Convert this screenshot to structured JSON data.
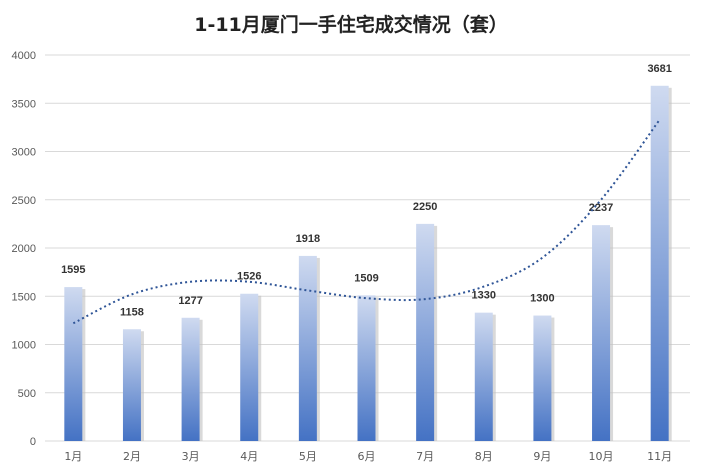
{
  "chart_data": {
    "type": "bar",
    "title": "1-11月厦门一手住宅成交情况（套）",
    "xlabel": "",
    "ylabel": "",
    "categories": [
      "1月",
      "2月",
      "3月",
      "4月",
      "5月",
      "6月",
      "7月",
      "8月",
      "9月",
      "10月",
      "11月"
    ],
    "values": [
      1595,
      1158,
      1277,
      1526,
      1918,
      1509,
      2250,
      1330,
      1300,
      2237,
      3681
    ],
    "ylim": [
      0,
      4000
    ],
    "yticks": [
      0,
      500,
      1000,
      1500,
      2000,
      2500,
      3000,
      3500,
      4000
    ],
    "grid": true,
    "legend": "none",
    "data_labels": true,
    "trendline": {
      "type": "polynomial",
      "style": "dotted",
      "values": [
        1220,
        1520,
        1650,
        1650,
        1560,
        1480,
        1470,
        1600,
        1900,
        2500,
        3330
      ]
    },
    "colors": {
      "bar_top": "#cfdaf0",
      "bar_bottom": "#4472c4",
      "trendline": "#2f5597",
      "grid": "#d9d9d9"
    }
  }
}
